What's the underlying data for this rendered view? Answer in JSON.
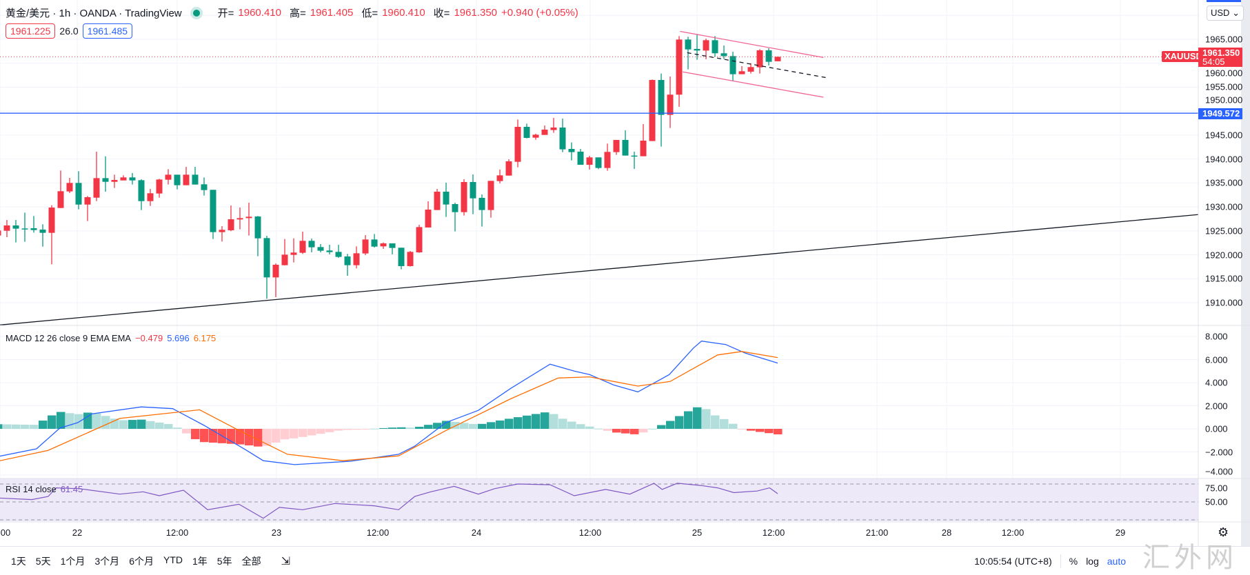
{
  "header": {
    "symbol_title": "黄金/美元 · 1h · OANDA · TradingView",
    "ohlc": [
      {
        "label": "开=",
        "value": "1960.410"
      },
      {
        "label": "高=",
        "value": "1961.405"
      },
      {
        "label": "低=",
        "value": "1960.410"
      },
      {
        "label": "收=",
        "value": "1961.350"
      }
    ],
    "change": "+0.940 (+0.05%)",
    "bid": "1961.225",
    "spread": "26.0",
    "ask": "1961.485"
  },
  "currency_button": "USD",
  "price_axis": {
    "ticks": [
      "1910.000",
      "1915.000",
      "1920.000",
      "1925.000",
      "1930.000",
      "1935.000",
      "1940.000",
      "1945.000",
      "1950.000",
      "1955.000",
      "1960.000",
      "1965.000"
    ],
    "tick_values": [
      1910,
      1915,
      1920,
      1925,
      1930,
      1935,
      1940,
      1945,
      1950,
      1955,
      1960,
      1965
    ],
    "symbol_tag": "XAUUSD",
    "last_price": "1961.350",
    "countdown": "54:05",
    "hline_label": "1949.572"
  },
  "macd": {
    "legend": "MACD 12 26 close 9 EMA EMA",
    "hist_value": "−0.479",
    "macd_value": "5.696",
    "signal_value": "6.175",
    "ticks": [
      "8.000",
      "6.000",
      "4.000",
      "2.000",
      "0.000",
      "−2.000",
      "−4.000"
    ],
    "tick_values": [
      8,
      6,
      4,
      2,
      0,
      -2,
      -4
    ]
  },
  "rsi": {
    "legend": "RSI 14 close",
    "value": "61.45",
    "ticks": [
      "75.00",
      "50.00"
    ],
    "tick_values": [
      75,
      50
    ]
  },
  "time_axis": [
    "00",
    "22",
    "12:00",
    "23",
    "12:00",
    "24",
    "12:00",
    "25",
    "12:00",
    "21:00",
    "28",
    "12:00",
    "29"
  ],
  "toolbar": {
    "ranges": [
      "1天",
      "5天",
      "1个月",
      "3个月",
      "6个月",
      "YTD",
      "1年",
      "5年",
      "全部"
    ],
    "clock": "10:05:54 (UTC+8)",
    "percent": "%",
    "log": "log",
    "auto": "auto"
  },
  "watermark": "汇外网",
  "colors": {
    "up": "#f23645",
    "down": "#089981",
    "macd": "#2962ff",
    "signal": "#ff6d00",
    "rsi": "#7e57c2",
    "hline": "#2962ff"
  },
  "chart_data": {
    "type": "candlestick",
    "ohlc": [
      [
        1924.02,
        1926.0,
        1923.5,
        1925.07
      ],
      [
        1925.02,
        1927.28,
        1923.68,
        1926.13
      ],
      [
        1926.13,
        1927.28,
        1922.58,
        1925.46
      ],
      [
        1925.5,
        1928.81,
        1922.72,
        1925.41
      ],
      [
        1925.55,
        1928.1,
        1924.64,
        1925.17
      ],
      [
        1925.26,
        1926.37,
        1921.71,
        1924.59
      ],
      [
        1924.59,
        1930.35,
        1918.02,
        1929.87
      ],
      [
        1929.77,
        1937.6,
        1929.77,
        1933.28
      ],
      [
        1933.23,
        1936.06,
        1932.89,
        1935.01
      ],
      [
        1935.01,
        1937.45,
        1929.49,
        1930.49
      ],
      [
        1930.49,
        1932.27,
        1927.04,
        1932.03
      ],
      [
        1931.93,
        1941.53,
        1931.21,
        1936.01
      ],
      [
        1936.01,
        1940.57,
        1933.18,
        1935.24
      ],
      [
        1935.24,
        1936.73,
        1933.95,
        1935.63
      ],
      [
        1935.53,
        1936.59,
        1935.53,
        1936.16
      ],
      [
        1936.16,
        1937.07,
        1934.67,
        1935.53
      ],
      [
        1935.58,
        1935.77,
        1929.34,
        1931.21
      ],
      [
        1931.21,
        1933.76,
        1930.21,
        1932.85
      ],
      [
        1932.8,
        1935.87,
        1931.93,
        1935.72
      ],
      [
        1935.68,
        1937.88,
        1934.67,
        1936.73
      ],
      [
        1936.73,
        1936.73,
        1933.66,
        1934.53
      ],
      [
        1934.53,
        1938.36,
        1934.53,
        1936.73
      ],
      [
        1936.73,
        1938.36,
        1934.67,
        1934.67
      ],
      [
        1934.72,
        1936.16,
        1932.37,
        1933.52
      ],
      [
        1933.57,
        1933.57,
        1923.3,
        1924.74
      ],
      [
        1924.74,
        1925.98,
        1922.77,
        1925.22
      ],
      [
        1925.12,
        1930.3,
        1924.93,
        1927.42
      ],
      [
        1927.38,
        1929.87,
        1925.31,
        1927.66
      ],
      [
        1927.66,
        1930.88,
        1924.02,
        1927.95
      ],
      [
        1928.0,
        1928.1,
        1919.7,
        1923.44
      ],
      [
        1923.49,
        1923.97,
        1910.82,
        1915.28
      ],
      [
        1915.28,
        1918.21,
        1911.16,
        1917.92
      ],
      [
        1917.83,
        1923.3,
        1917.78,
        1920.03
      ],
      [
        1919.99,
        1923.44,
        1918.41,
        1920.47
      ],
      [
        1920.42,
        1924.83,
        1920.18,
        1922.92
      ],
      [
        1922.92,
        1923.4,
        1920.52,
        1921.57
      ],
      [
        1921.62,
        1922.24,
        1920.52,
        1920.85
      ],
      [
        1920.9,
        1922.1,
        1920.08,
        1920.56
      ],
      [
        1920.61,
        1922.1,
        1919.36,
        1919.56
      ],
      [
        1919.65,
        1920.18,
        1915.62,
        1917.83
      ],
      [
        1917.83,
        1921.76,
        1917.16,
        1920.32
      ],
      [
        1920.28,
        1924.11,
        1919.94,
        1923.2
      ],
      [
        1923.2,
        1924.35,
        1921.52,
        1921.71
      ],
      [
        1921.76,
        1922.58,
        1921.24,
        1922.39
      ],
      [
        1922.39,
        1922.39,
        1920.08,
        1921.43
      ],
      [
        1921.48,
        1921.48,
        1916.97,
        1917.64
      ],
      [
        1917.64,
        1920.8,
        1917.54,
        1920.61
      ],
      [
        1920.51,
        1926.27,
        1920.42,
        1925.79
      ],
      [
        1925.7,
        1931.17,
        1925.7,
        1929.44
      ],
      [
        1929.35,
        1933.76,
        1929.35,
        1933.18
      ],
      [
        1933.18,
        1935.06,
        1927.91,
        1930.5
      ],
      [
        1930.59,
        1930.88,
        1924.88,
        1928.91
      ],
      [
        1928.91,
        1935.78,
        1928.19,
        1935.2
      ],
      [
        1935.2,
        1936.78,
        1928.48,
        1931.79
      ],
      [
        1931.89,
        1932.61,
        1925.89,
        1929.35
      ],
      [
        1929.35,
        1935.44,
        1927.76,
        1935.44
      ],
      [
        1935.39,
        1937.79,
        1934.91,
        1936.59
      ],
      [
        1936.54,
        1939.95,
        1936.54,
        1939.52
      ],
      [
        1939.42,
        1948.25,
        1938.27,
        1946.72
      ],
      [
        1946.72,
        1947.39,
        1944.32,
        1944.41
      ],
      [
        1944.46,
        1945.28,
        1944.03,
        1945.08
      ],
      [
        1945.04,
        1947.0,
        1945.04,
        1946.14
      ],
      [
        1946.05,
        1948.59,
        1945.47,
        1946.58
      ],
      [
        1946.58,
        1948.45,
        1941.44,
        1942.02
      ],
      [
        1942.11,
        1943.46,
        1939.71,
        1941.44
      ],
      [
        1941.54,
        1942.11,
        1938.8,
        1938.8
      ],
      [
        1938.8,
        1940.67,
        1937.8,
        1940.34
      ],
      [
        1940.34,
        1940.34,
        1937.89,
        1938.13
      ],
      [
        1938.13,
        1943.22,
        1937.56,
        1941.49
      ],
      [
        1941.44,
        1943.99,
        1940.87,
        1943.99
      ],
      [
        1943.99,
        1946.0,
        1940.72,
        1940.72
      ],
      [
        1940.72,
        1941.54,
        1937.94,
        1940.63
      ],
      [
        1940.58,
        1947.3,
        1940.58,
        1943.84
      ],
      [
        1943.75,
        1956.6,
        1943.75,
        1956.51
      ],
      [
        1956.51,
        1957.85,
        1942.59,
        1949.22
      ],
      [
        1949.22,
        1957.23,
        1946.48,
        1953.44
      ],
      [
        1953.44,
        1965.67,
        1950.9,
        1964.95
      ],
      [
        1964.95,
        1965.53,
        1958.72,
        1962.89
      ],
      [
        1962.99,
        1966.11,
        1960.73,
        1962.65
      ],
      [
        1962.65,
        1965.15,
        1960.83,
        1964.81
      ],
      [
        1964.81,
        1965.67,
        1961.36,
        1962.08
      ],
      [
        1962.08,
        1963.71,
        1960.88,
        1961.5
      ],
      [
        1961.5,
        1962.41,
        1956.32,
        1957.71
      ],
      [
        1957.71,
        1959.39,
        1957.71,
        1958.33
      ],
      [
        1958.24,
        1960.01,
        1957.85,
        1959.2
      ],
      [
        1959.15,
        1962.94,
        1957.85,
        1962.7
      ],
      [
        1962.7,
        1963.13,
        1959.53,
        1960.3
      ],
      [
        1960.41,
        1961.405,
        1960.41,
        1961.35
      ]
    ],
    "price_range": [
      1905,
      1971
    ],
    "horizontal_line": 1949.572,
    "current_price": 1961.35,
    "trendlines": [
      {
        "name": "support-trendline",
        "color": "#131722",
        "dash": false,
        "from": [
          1.23,
          1905.35
        ],
        "to": [
          134.9,
          1928.4
        ]
      },
      {
        "name": "channel-upper-line",
        "color": "#f06292",
        "dash": false,
        "from": [
          77.1,
          1966.66
        ],
        "to": [
          93.1,
          1961.2
        ]
      },
      {
        "name": "channel-lower-line",
        "color": "#f06292",
        "dash": false,
        "from": [
          77.4,
          1958.2
        ],
        "to": [
          93.1,
          1952.9
        ]
      },
      {
        "name": "channel-mid-line",
        "color": "#131722",
        "dash": true,
        "from": [
          77.9,
          1962.2
        ],
        "to": [
          93.4,
          1957.0
        ]
      }
    ],
    "macd_line": [
      [
        1,
        -2.4
      ],
      [
        5.3,
        -1.73
      ],
      [
        7.9,
        0.06
      ],
      [
        9.9,
        0.54
      ],
      [
        11.5,
        1.3
      ],
      [
        17,
        1.9
      ],
      [
        20.5,
        1.75
      ],
      [
        24,
        0.3
      ],
      [
        28.6,
        -1.8
      ],
      [
        30.6,
        -2.76
      ],
      [
        34.1,
        -3.1
      ],
      [
        40.4,
        -2.8
      ],
      [
        45.7,
        -2.2
      ],
      [
        47.5,
        -1.5
      ],
      [
        51,
        0.55
      ],
      [
        54.6,
        1.6
      ],
      [
        58.2,
        3.5
      ],
      [
        62.6,
        5.6
      ],
      [
        65.3,
        5.0
      ],
      [
        67,
        4.7
      ],
      [
        69.7,
        3.8
      ],
      [
        72.4,
        3.2
      ],
      [
        75.9,
        4.7
      ],
      [
        78.6,
        7.0
      ],
      [
        79.5,
        7.6
      ],
      [
        82.2,
        7.3
      ],
      [
        84.4,
        6.55
      ],
      [
        88,
        5.696
      ]
    ],
    "signal_line": [
      [
        1,
        -2.8
      ],
      [
        6.6,
        -1.86
      ],
      [
        14.6,
        0.9
      ],
      [
        23.5,
        1.65
      ],
      [
        27.9,
        -0.14
      ],
      [
        33.3,
        -2.2
      ],
      [
        39.5,
        -2.76
      ],
      [
        45.7,
        -2.34
      ],
      [
        51,
        -0.14
      ],
      [
        58.2,
        2.6
      ],
      [
        63.5,
        4.4
      ],
      [
        67,
        4.5
      ],
      [
        72.4,
        3.7
      ],
      [
        76,
        4.1
      ],
      [
        81.3,
        6.4
      ],
      [
        84,
        6.7
      ],
      [
        88,
        6.175
      ]
    ],
    "macd_range": [
      -4.5,
      8.5
    ],
    "rsi_line": [
      [
        1.2,
        55.4
      ],
      [
        4.8,
        53.3
      ],
      [
        6.6,
        57.6
      ],
      [
        7.5,
        69.6
      ],
      [
        10.1,
        68.5
      ],
      [
        14.6,
        60.9
      ],
      [
        17.2,
        64.1
      ],
      [
        19,
        58.7
      ],
      [
        21.7,
        66.3
      ],
      [
        24.4,
        39.1
      ],
      [
        27.9,
        46.7
      ],
      [
        30.6,
        27.2
      ],
      [
        32.4,
        42.4
      ],
      [
        35,
        39.1
      ],
      [
        38.6,
        47.8
      ],
      [
        43,
        44.6
      ],
      [
        45.7,
        39.1
      ],
      [
        47.5,
        57.6
      ],
      [
        49.3,
        64.1
      ],
      [
        51.9,
        71.7
      ],
      [
        54.6,
        60.9
      ],
      [
        56.4,
        68.5
      ],
      [
        59,
        75
      ],
      [
        62.6,
        73.9
      ],
      [
        65.3,
        58.7
      ],
      [
        68.8,
        67.4
      ],
      [
        71.5,
        60.9
      ],
      [
        74.2,
        76.1
      ],
      [
        75.1,
        67.4
      ],
      [
        76.8,
        76.1
      ],
      [
        79.5,
        72.8
      ],
      [
        81.3,
        69.6
      ],
      [
        83.1,
        63
      ],
      [
        85.7,
        65.2
      ],
      [
        87.1,
        69.6
      ],
      [
        88,
        61.45
      ]
    ],
    "rsi_bands": [
      25,
      50,
      75
    ]
  }
}
